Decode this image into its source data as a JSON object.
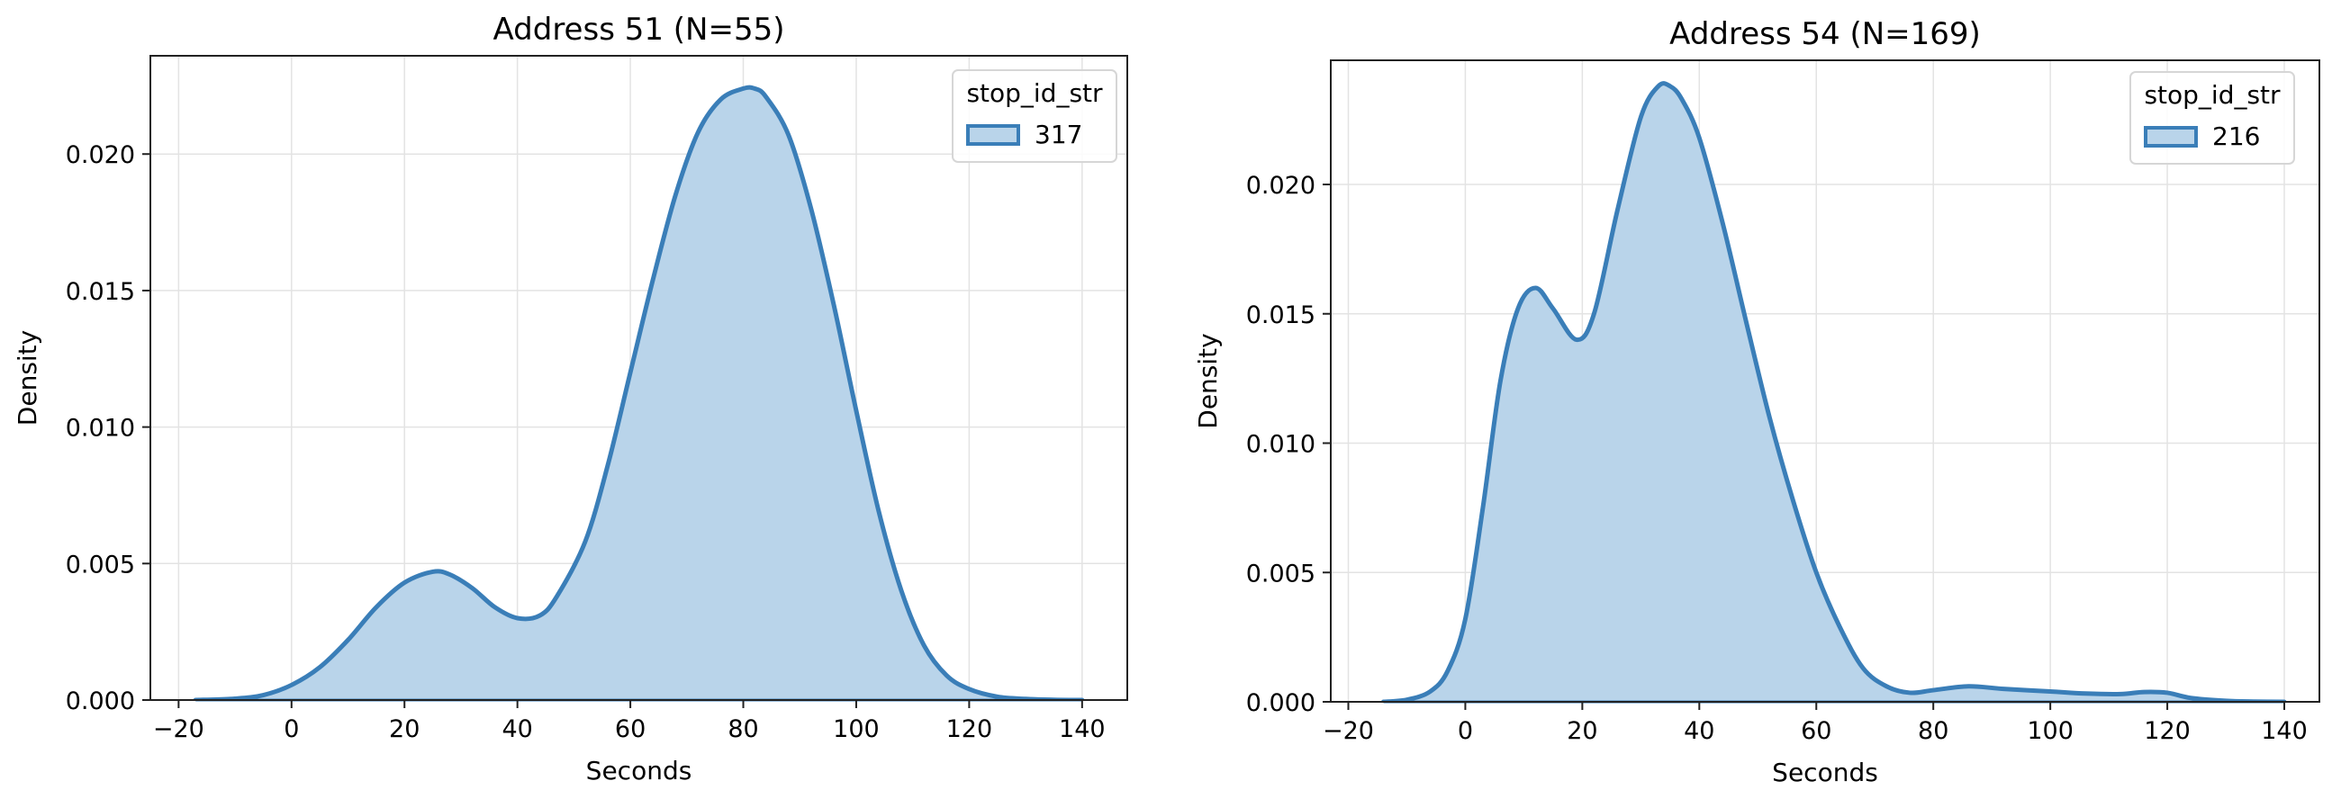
{
  "chart_data": [
    {
      "type": "area",
      "title": "Address 51 (N=55)",
      "xlabel": "Seconds",
      "ylabel": "Density",
      "xlim": [
        -25,
        148
      ],
      "ylim": [
        0,
        0.0236
      ],
      "xticks": [
        -20,
        0,
        20,
        40,
        60,
        80,
        100,
        120,
        140
      ],
      "xtick_labels": [
        "−20",
        "0",
        "20",
        "40",
        "60",
        "80",
        "100",
        "120",
        "140"
      ],
      "yticks": [
        0,
        0.005,
        0.01,
        0.015,
        0.02
      ],
      "ytick_labels": [
        "0.000",
        "0.005",
        "0.010",
        "0.015",
        "0.020"
      ],
      "grid": true,
      "legend": {
        "title": "stop_id_str",
        "placement": "top-right",
        "entries": [
          "317"
        ]
      },
      "colors": {
        "line": "#3a7eb8",
        "fill": "#b9d4ea"
      },
      "series": [
        {
          "name": "317",
          "x": [
            -17,
            -10,
            -5,
            0,
            5,
            10,
            15,
            20,
            25,
            28,
            32,
            36,
            40,
            44,
            47,
            52,
            56,
            60,
            64,
            68,
            72,
            76,
            80,
            82,
            84,
            88,
            92,
            96,
            100,
            104,
            108,
            112,
            116,
            120,
            125,
            130,
            135,
            140
          ],
          "y": [
            0.0,
            5e-05,
            0.00018,
            0.00055,
            0.0012,
            0.0022,
            0.0034,
            0.0043,
            0.0047,
            0.0046,
            0.0041,
            0.0034,
            0.003,
            0.0031,
            0.0038,
            0.0058,
            0.0086,
            0.012,
            0.0154,
            0.0185,
            0.0208,
            0.022,
            0.0224,
            0.0224,
            0.0221,
            0.0207,
            0.018,
            0.0145,
            0.0106,
            0.0069,
            0.004,
            0.002,
            0.0009,
            0.0004,
            0.00012,
            4e-05,
            1e-05,
            0.0
          ]
        }
      ]
    },
    {
      "type": "area",
      "title": "Address 54 (N=169)",
      "xlabel": "Seconds",
      "ylabel": "Density",
      "xlim": [
        -23,
        146
      ],
      "ylim": [
        0,
        0.0248
      ],
      "xticks": [
        -20,
        0,
        20,
        40,
        60,
        80,
        100,
        120,
        140
      ],
      "xtick_labels": [
        "−20",
        "0",
        "20",
        "40",
        "60",
        "80",
        "100",
        "120",
        "140"
      ],
      "yticks": [
        0,
        0.005,
        0.01,
        0.015,
        0.02
      ],
      "ytick_labels": [
        "0.000",
        "0.005",
        "0.010",
        "0.015",
        "0.020"
      ],
      "grid": true,
      "legend": {
        "title": "stop_id_str",
        "placement": "top-right",
        "entries": [
          "216"
        ]
      },
      "colors": {
        "line": "#3a7eb8",
        "fill": "#b9d4ea"
      },
      "series": [
        {
          "name": "216",
          "x": [
            -14,
            -10,
            -6,
            -3,
            0,
            3,
            6,
            9,
            12,
            15,
            19,
            22,
            26,
            30,
            33,
            35,
            37,
            40,
            44,
            48,
            52,
            56,
            60,
            64,
            68,
            72,
            76,
            80,
            86,
            92,
            100,
            106,
            112,
            116,
            120,
            124,
            130,
            135,
            140
          ],
          "y": [
            0.0,
            8e-05,
            0.0004,
            0.0012,
            0.0032,
            0.0075,
            0.0124,
            0.0152,
            0.016,
            0.0152,
            0.014,
            0.015,
            0.019,
            0.0226,
            0.0238,
            0.0238,
            0.0233,
            0.0218,
            0.0185,
            0.0147,
            0.011,
            0.0078,
            0.005,
            0.0029,
            0.0013,
            0.0006,
            0.00035,
            0.00045,
            0.0006,
            0.0005,
            0.0004,
            0.00032,
            0.0003,
            0.00038,
            0.00035,
            0.00015,
            4e-05,
            1e-05,
            0.0
          ]
        }
      ]
    }
  ]
}
